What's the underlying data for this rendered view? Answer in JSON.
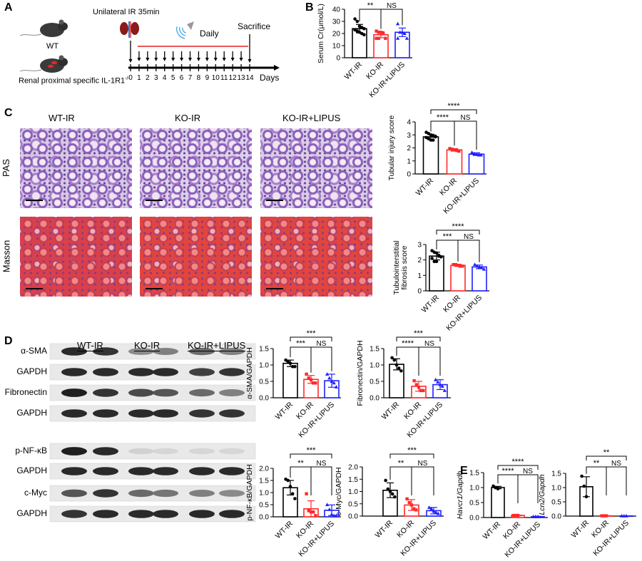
{
  "panel_labels": {
    "a": "A",
    "b": "B",
    "c": "C",
    "d": "D",
    "e": "E"
  },
  "panel_a": {
    "procedure": "Unilateral IR  35min",
    "treatment": "Daily",
    "endpoint": "Sacrifice",
    "mouse_wt": "WT",
    "mouse_ko": "Renal proximal specific IL-1R1",
    "mouse_ko_superscript": "-/-",
    "days": [
      "0",
      "1",
      "2",
      "3",
      "4",
      "5",
      "6",
      "7",
      "8",
      "9",
      "10",
      "11",
      "12",
      "13",
      "14"
    ],
    "days_label": "Days"
  },
  "panel_c": {
    "columns": [
      "WT-IR",
      "KO-IR",
      "KO-IR+LIPUS"
    ],
    "rows": [
      "PAS",
      "Masson"
    ]
  },
  "panel_d": {
    "groups": [
      "WT-IR",
      "KO-IR",
      "KO-IR+LIPUS"
    ],
    "blots": [
      {
        "label": "α-SMA",
        "band_levels": [
          0.9,
          0.85,
          0.45,
          0.5,
          0.6,
          0.5
        ]
      },
      {
        "label": "GAPDH",
        "band_levels": [
          0.9,
          0.9,
          0.9,
          0.9,
          0.8,
          0.85
        ]
      },
      {
        "label": "Fibronectin",
        "band_levels": [
          0.95,
          0.85,
          0.75,
          0.7,
          0.6,
          0.5
        ]
      },
      {
        "label": "GAPDH",
        "band_levels": [
          0.9,
          0.9,
          0.9,
          0.9,
          0.85,
          0.85
        ]
      },
      {
        "label": "p-NF-κB",
        "band_levels": [
          0.95,
          0.9,
          0.12,
          0.1,
          0.1,
          0.1
        ]
      },
      {
        "label": "GAPDH",
        "band_levels": [
          0.9,
          0.9,
          0.9,
          0.9,
          0.9,
          0.9
        ]
      },
      {
        "label": "c-Myc",
        "band_levels": [
          0.7,
          0.85,
          0.6,
          0.55,
          0.5,
          0.45
        ]
      },
      {
        "label": "GAPDH",
        "band_levels": [
          0.85,
          0.9,
          0.9,
          0.9,
          0.9,
          0.9
        ]
      }
    ]
  },
  "colors": {
    "WT-IR": "#000000",
    "KO-IR": "#ff2a2a",
    "KO-IR+LIPUS": "#1f1fff"
  },
  "chart_data": [
    {
      "id": "serum_cr",
      "type": "bar",
      "ylabel": [
        "Serum Cr(μmol/L)"
      ],
      "italic": false,
      "categories": [
        "WT-IR",
        "KO-IR",
        "KO-IR+LIPUS"
      ],
      "ylim": [
        0,
        40
      ],
      "yticks": [
        "0",
        "10",
        "20",
        "30",
        "40"
      ],
      "means": [
        24,
        19,
        21
      ],
      "sd": [
        3.5,
        2.5,
        3.5
      ],
      "points": [
        [
          32,
          30,
          26,
          25,
          24,
          23,
          22,
          21,
          20,
          19
        ],
        [
          22,
          21,
          21,
          20,
          16,
          16,
          16
        ],
        [
          28,
          21,
          21,
          20,
          16,
          16
        ]
      ],
      "significance": [
        {
          "pair": [
            0,
            1
          ],
          "label": "**"
        },
        {
          "pair": [
            1,
            2
          ],
          "label": "NS"
        }
      ]
    },
    {
      "id": "tubular_injury",
      "type": "bar",
      "ylabel": [
        "Tubular injury score"
      ],
      "italic": false,
      "categories": [
        "WT-IR",
        "KO-IR",
        "KO-IR+LIPUS"
      ],
      "ylim": [
        0,
        4
      ],
      "yticks": [
        "0",
        "1",
        "2",
        "3",
        "4"
      ],
      "means": [
        2.85,
        1.85,
        1.52
      ],
      "sd": [
        0.2,
        0.1,
        0.1
      ],
      "points": [
        [
          3.2,
          3.1,
          3.0,
          2.9,
          2.85,
          2.8,
          2.7,
          2.6,
          2.6,
          2.9
        ],
        [
          1.95,
          1.9,
          1.85,
          1.8,
          1.75
        ],
        [
          1.65,
          1.55,
          1.5,
          1.45,
          1.45
        ]
      ],
      "significance": [
        {
          "pair": [
            0,
            2
          ],
          "label": "****"
        },
        {
          "pair": [
            0,
            1
          ],
          "label": "****"
        },
        {
          "pair": [
            1,
            2
          ],
          "label": "NS"
        }
      ]
    },
    {
      "id": "fibrosis",
      "type": "bar",
      "ylabel": [
        "Tubulointerstitial",
        "fibrosis score"
      ],
      "italic": false,
      "categories": [
        "WT-IR",
        "KO-IR",
        "KO-IR+LIPUS"
      ],
      "ylim": [
        0,
        3
      ],
      "yticks": [
        "0",
        "1",
        "2",
        "3"
      ],
      "means": [
        2.25,
        1.65,
        1.55
      ],
      "sd": [
        0.25,
        0.07,
        0.12
      ],
      "points": [
        [
          2.6,
          2.5,
          2.45,
          2.3,
          2.2,
          2.1,
          1.9,
          1.9,
          2.25
        ],
        [
          1.7,
          1.7,
          1.65,
          1.6,
          1.6
        ],
        [
          1.7,
          1.6,
          1.55,
          1.5,
          1.4
        ]
      ],
      "significance": [
        {
          "pair": [
            0,
            2
          ],
          "label": "****"
        },
        {
          "pair": [
            0,
            1
          ],
          "label": "***"
        },
        {
          "pair": [
            1,
            2
          ],
          "label": "NS"
        }
      ]
    },
    {
      "id": "asma",
      "type": "bar",
      "ylabel": [
        "α-SMA/GAPDH"
      ],
      "italic": false,
      "categories": [
        "WT-IR",
        "KO-IR",
        "KO-IR+LIPUS"
      ],
      "ylim": [
        0,
        1.5
      ],
      "yticks": [
        "0.0",
        "0.5",
        "1.0",
        "1.5"
      ],
      "means": [
        1.05,
        0.56,
        0.52
      ],
      "sd": [
        0.1,
        0.12,
        0.2
      ],
      "points": [
        [
          1.15,
          1.1,
          1.05,
          0.95,
          0.95
        ],
        [
          0.72,
          0.6,
          0.55,
          0.45,
          0.45
        ],
        [
          0.72,
          0.6,
          0.5,
          0.45,
          0.33
        ]
      ],
      "significance": [
        {
          "pair": [
            0,
            2
          ],
          "label": "***"
        },
        {
          "pair": [
            0,
            1
          ],
          "label": "***"
        },
        {
          "pair": [
            1,
            2
          ],
          "label": "NS"
        }
      ]
    },
    {
      "id": "fibronectin",
      "type": "bar",
      "ylabel": [
        "Fibronectin/GAPDH"
      ],
      "italic": false,
      "categories": [
        "WT-IR",
        "KO-IR",
        "KO-IR+LIPUS"
      ],
      "ylim": [
        0,
        1.5
      ],
      "yticks": [
        "0.0",
        "0.5",
        "1.0",
        "1.5"
      ],
      "means": [
        1.02,
        0.35,
        0.4
      ],
      "sd": [
        0.17,
        0.15,
        0.15
      ],
      "points": [
        [
          1.22,
          1.15,
          1.0,
          0.9,
          0.82
        ],
        [
          0.52,
          0.4,
          0.32,
          0.22,
          0.22
        ],
        [
          0.55,
          0.48,
          0.4,
          0.35,
          0.22
        ]
      ],
      "significance": [
        {
          "pair": [
            0,
            2
          ],
          "label": "***"
        },
        {
          "pair": [
            0,
            1
          ],
          "label": "****"
        },
        {
          "pair": [
            1,
            2
          ],
          "label": "NS"
        }
      ]
    },
    {
      "id": "pnfkb",
      "type": "bar",
      "ylabel": [
        "p-NF-κB/GAPDH"
      ],
      "italic": false,
      "categories": [
        "WT-IR",
        "KO-IR",
        "KO-IR+LIPUS"
      ],
      "ylim": [
        0,
        2
      ],
      "yticks": [
        "0.0",
        "0.5",
        "1.0",
        "1.5",
        "2.0"
      ],
      "means": [
        1.2,
        0.33,
        0.27
      ],
      "sd": [
        0.3,
        0.33,
        0.22
      ],
      "points": [
        [
          1.55,
          1.5,
          1.25,
          0.95,
          0.75
        ],
        [
          0.95,
          0.25,
          0.2,
          0.2,
          0.05
        ],
        [
          0.5,
          0.3,
          0.1,
          0.05,
          0.05
        ]
      ],
      "significance": [
        {
          "pair": [
            0,
            2
          ],
          "label": "***"
        },
        {
          "pair": [
            0,
            1
          ],
          "label": "**"
        },
        {
          "pair": [
            1,
            2
          ],
          "label": "NS"
        }
      ]
    },
    {
      "id": "cmyc",
      "type": "bar",
      "ylabel": [
        "c-Myc/GAPDH"
      ],
      "italic": false,
      "categories": [
        "WT-IR",
        "KO-IR",
        "KO-IR+LIPUS"
      ],
      "ylim": [
        0,
        2
      ],
      "yticks": [
        "0.0",
        "0.5",
        "1.0",
        "1.5",
        "2.0"
      ],
      "means": [
        1.05,
        0.45,
        0.22
      ],
      "sd": [
        0.3,
        0.22,
        0.13
      ],
      "points": [
        [
          1.45,
          1.1,
          1.0,
          0.9,
          0.78
        ],
        [
          0.7,
          0.55,
          0.45,
          0.3,
          0.25
        ],
        [
          0.35,
          0.3,
          0.2,
          0.15,
          0.1
        ]
      ],
      "significance": [
        {
          "pair": [
            0,
            2
          ],
          "label": "***"
        },
        {
          "pair": [
            0,
            1
          ],
          "label": "**"
        },
        {
          "pair": [
            1,
            2
          ],
          "label": "NS"
        }
      ]
    },
    {
      "id": "havcr1",
      "type": "bar",
      "ylabel": [
        "Havcr1/Gapdh"
      ],
      "italic": true,
      "categories": [
        "WT-IR",
        "KO-IR",
        "KO-IR+LIPUS"
      ],
      "ylim": [
        0,
        1.5
      ],
      "yticks": [
        "0.0",
        "0.5",
        "1.0",
        "1.5"
      ],
      "means": [
        1.0,
        0.07,
        0.03
      ],
      "sd": [
        0.04,
        0.01,
        0.01
      ],
      "points": [
        [
          1.05,
          1.0,
          0.96
        ],
        [
          0.07,
          0.07,
          0.07
        ],
        [
          0.03,
          0.03,
          0.03
        ]
      ],
      "significance": [
        {
          "pair": [
            0,
            2
          ],
          "label": "****"
        },
        {
          "pair": [
            0,
            1
          ],
          "label": "****"
        },
        {
          "pair": [
            1,
            2
          ],
          "label": "NS"
        }
      ]
    },
    {
      "id": "lcn2",
      "type": "bar",
      "ylabel": [
        "Lcn2/Gapdh"
      ],
      "italic": true,
      "categories": [
        "WT-IR",
        "KO-IR",
        "KO-IR+LIPUS"
      ],
      "ylim": [
        0,
        1.5
      ],
      "yticks": [
        "0.0",
        "0.5",
        "1.0",
        "1.5"
      ],
      "means": [
        1.03,
        0.01,
        0.005
      ],
      "sd": [
        0.35,
        0.005,
        0.003
      ],
      "points": [
        [
          1.4,
          1.05,
          0.68
        ],
        [
          0.01,
          0.01,
          0.01
        ],
        [
          0.005,
          0.005,
          0.005
        ]
      ],
      "significance": [
        {
          "pair": [
            0,
            2
          ],
          "label": "**"
        },
        {
          "pair": [
            0,
            1
          ],
          "label": "**"
        },
        {
          "pair": [
            1,
            2
          ],
          "label": "NS"
        }
      ]
    }
  ]
}
